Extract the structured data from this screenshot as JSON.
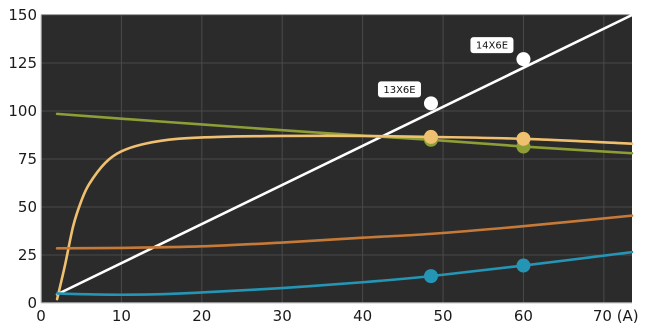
{
  "chart_data": {
    "type": "line",
    "x_axis": {
      "range": [
        0,
        73.5
      ],
      "ticks": [
        0,
        10,
        20,
        30,
        40,
        50,
        60,
        70
      ],
      "tick_labels": [
        "0",
        "10",
        "20",
        "30",
        "40",
        "50",
        "60",
        "70 (A)"
      ]
    },
    "y_axis": {
      "range": [
        0,
        150
      ],
      "ticks": [
        0,
        25,
        50,
        75,
        100,
        125,
        150
      ],
      "tick_labels": [
        "0",
        "25",
        "50",
        "75",
        "100",
        "125",
        "150"
      ]
    },
    "grid": true,
    "series": [
      {
        "color": "#ffffff",
        "x": [
          2,
          73.5
        ],
        "y": [
          4.5,
          150
        ],
        "markers": [
          {
            "x": 48.5,
            "y": 104,
            "label": "13X6E"
          },
          {
            "x": 60,
            "y": 127,
            "label": "14X6E"
          }
        ]
      },
      {
        "color": "#8c9e35",
        "x": [
          2,
          10,
          20,
          30,
          40,
          48.5,
          60,
          73.5
        ],
        "y": [
          98.5,
          96,
          93,
          90,
          87.2,
          85,
          81.5,
          78
        ],
        "markers": [
          {
            "x": 48.5,
            "y": 85
          },
          {
            "x": 60,
            "y": 81.5
          }
        ]
      },
      {
        "color": "#efc070",
        "x": [
          2,
          3,
          4,
          5,
          6,
          8,
          10,
          13,
          17,
          22,
          30,
          40,
          48.5,
          60,
          73.5
        ],
        "y": [
          2,
          20,
          40,
          53,
          62,
          73,
          79,
          83,
          85.5,
          86.5,
          87,
          87,
          86.5,
          85.5,
          83
        ],
        "markers": [
          {
            "x": 48.5,
            "y": 86.5
          },
          {
            "x": 60,
            "y": 85.5
          }
        ]
      },
      {
        "color": "#c77a38",
        "x": [
          2,
          10,
          20,
          30,
          40,
          48.5,
          60,
          73.5
        ],
        "y": [
          28.5,
          28.7,
          29.5,
          31.5,
          34,
          36,
          40,
          45.5
        ],
        "markers": []
      },
      {
        "color": "#2495b5",
        "x": [
          2,
          5,
          10,
          15,
          20,
          30,
          40,
          48.5,
          60,
          73.5
        ],
        "y": [
          5,
          4.6,
          4.3,
          4.6,
          5.5,
          7.8,
          10.8,
          14,
          19.5,
          26.5
        ],
        "markers": [
          {
            "x": 48.5,
            "y": 14
          },
          {
            "x": 60,
            "y": 19.5
          }
        ]
      }
    ]
  }
}
